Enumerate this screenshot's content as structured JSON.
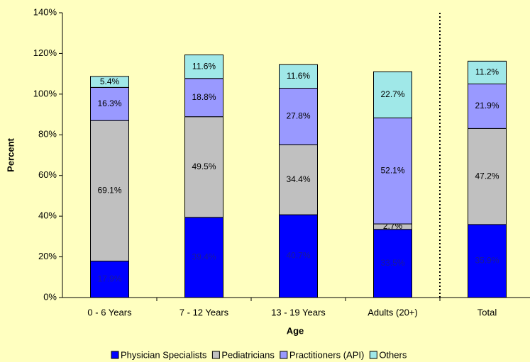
{
  "chart_data": {
    "type": "stacked_bar",
    "x_label": "Age",
    "y_label": "Percent",
    "categories": [
      "0 - 6 Years",
      "7 - 12 Years",
      "13 - 19 Years",
      "Adults (20+)",
      "Total"
    ],
    "series": [
      {
        "name": "Physician Specialists",
        "color": "#0000ff",
        "values": [
          17.9,
          39.4,
          40.7,
          33.5,
          35.9
        ],
        "value_labels": [
          "17.9%",
          "39.4%",
          "40.7%",
          "33.5%",
          "35.9%"
        ]
      },
      {
        "name": "Pediatricians",
        "color": "#c0c0c0",
        "values": [
          69.1,
          49.5,
          34.4,
          2.7,
          47.2
        ],
        "value_labels": [
          "69.1%",
          "49.5%",
          "34.4%",
          "2.7%",
          "47.2%"
        ]
      },
      {
        "name": "Practitioners (API)",
        "color": "#9999ff",
        "values": [
          16.3,
          18.8,
          27.8,
          52.1,
          21.9
        ],
        "value_labels": [
          "16.3%",
          "18.8%",
          "27.8%",
          "52.1%",
          "21.9%"
        ]
      },
      {
        "name": "Others",
        "color": "#a0e8e8",
        "values": [
          5.4,
          11.6,
          11.6,
          22.7,
          11.2
        ],
        "value_labels": [
          "5.4%",
          "11.6%",
          "11.6%",
          "22.7%",
          "11.2%"
        ]
      }
    ],
    "ylim": [
      0,
      140
    ],
    "yticks": [
      {
        "value": 0,
        "label": "0%"
      },
      {
        "value": 20,
        "label": "20%"
      },
      {
        "value": 40,
        "label": "40%"
      },
      {
        "value": 60,
        "label": "60%"
      },
      {
        "value": 80,
        "label": "80%"
      },
      {
        "value": 100,
        "label": "100%"
      },
      {
        "value": 120,
        "label": "120%"
      },
      {
        "value": 140,
        "label": "140%"
      }
    ],
    "legend": "bottom"
  }
}
